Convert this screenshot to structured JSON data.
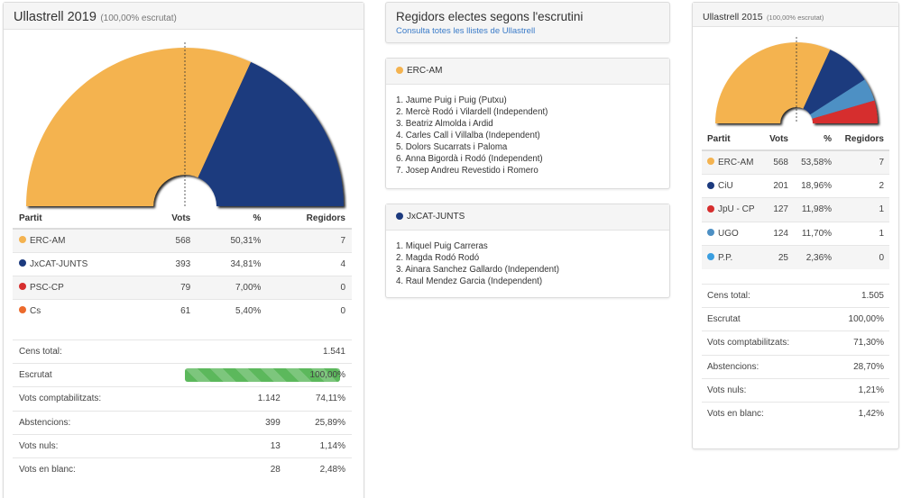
{
  "y2019": {
    "title": "Ullastrell 2019",
    "subtitle": "(100,00% escrutat)",
    "headers": [
      "Partit",
      "Vots",
      "%",
      "Regidors"
    ],
    "parties": [
      {
        "name": "ERC-AM",
        "votes": "568",
        "pct": "50,31%",
        "seats": "7",
        "color": "#f4b350"
      },
      {
        "name": "JxCAT-JUNTS",
        "votes": "393",
        "pct": "34,81%",
        "seats": "4",
        "color": "#1c3a7e"
      },
      {
        "name": "PSC-CP",
        "votes": "79",
        "pct": "7,00%",
        "seats": "0",
        "color": "#d62e2e"
      },
      {
        "name": "Cs",
        "votes": "61",
        "pct": "5,40%",
        "seats": "0",
        "color": "#ec6a2c"
      }
    ],
    "stats": [
      {
        "label": "Cens total:",
        "value": "",
        "pct": "1.541"
      },
      {
        "label": "Escrutat",
        "value": "",
        "pct": "100,00%",
        "progress": 100
      },
      {
        "label": "Vots comptabilitzats:",
        "value": "1.142",
        "pct": "74,11%"
      },
      {
        "label": "Abstencions:",
        "value": "399",
        "pct": "25,89%"
      },
      {
        "label": "Vots nuls:",
        "value": "13",
        "pct": "1,14%"
      },
      {
        "label": "Vots en blanc:",
        "value": "28",
        "pct": "2,48%"
      }
    ],
    "hemicycle": [
      {
        "party": "ERC-AM",
        "seats": 7,
        "color": "#f4b350"
      },
      {
        "party": "JxCAT-JUNTS",
        "seats": 4,
        "color": "#1c3a7e"
      }
    ]
  },
  "middle": {
    "title": "Regidors electes segons l'escrutini",
    "link": "Consulta totes les llistes de Ullastrell",
    "lists": [
      {
        "party": "ERC-AM",
        "color": "#f4b350",
        "members": [
          "1. Jaume Puig i Puig (Putxu)",
          "2. Mercè Rodó i Vilardell (Independent)",
          "3. Beatriz Almolda i Ardid",
          "4. Carles Call i Villalba (Independent)",
          "5. Dolors Sucarrats i Paloma",
          "6. Anna Bigordà i Rodó (Independent)",
          "7. Josep Andreu Revestido i Romero"
        ]
      },
      {
        "party": "JxCAT-JUNTS",
        "color": "#1c3a7e",
        "members": [
          "1. Miquel Puig Carreras",
          "2. Magda Rodó Rodó",
          "3. Ainara Sanchez Gallardo (Independent)",
          "4. Raul Mendez Garcia (Independent)"
        ]
      }
    ]
  },
  "y2015": {
    "title": "Ullastrell 2015",
    "subtitle": "(100,00% escrutat)",
    "headers": [
      "Partit",
      "Vots",
      "%",
      "Regidors"
    ],
    "parties": [
      {
        "name": "ERC-AM",
        "votes": "568",
        "pct": "53,58%",
        "seats": "7",
        "color": "#f4b350"
      },
      {
        "name": "CiU",
        "votes": "201",
        "pct": "18,96%",
        "seats": "2",
        "color": "#1c3a7e"
      },
      {
        "name": "JpU - CP",
        "votes": "127",
        "pct": "11,98%",
        "seats": "1",
        "color": "#d62e2e"
      },
      {
        "name": "UGO",
        "votes": "124",
        "pct": "11,70%",
        "seats": "1",
        "color": "#4d90c4"
      },
      {
        "name": "P.P.",
        "votes": "25",
        "pct": "2,36%",
        "seats": "0",
        "color": "#3a9ee0"
      }
    ],
    "stats": [
      {
        "label": "Cens total:",
        "pct": "1.505"
      },
      {
        "label": "Escrutat",
        "pct": "100,00%"
      },
      {
        "label": "Vots comptabilitzats:",
        "pct": "71,30%"
      },
      {
        "label": "Abstencions:",
        "pct": "28,70%"
      },
      {
        "label": "Vots nuls:",
        "pct": "1,21%"
      },
      {
        "label": "Vots en blanc:",
        "pct": "1,42%"
      }
    ],
    "hemicycle": [
      {
        "party": "ERC-AM",
        "seats": 7,
        "color": "#f4b350"
      },
      {
        "party": "CiU",
        "seats": 2,
        "color": "#1c3a7e"
      },
      {
        "party": "UGO",
        "seats": 1,
        "color": "#4d90c4"
      },
      {
        "party": "JpU - CP",
        "seats": 1,
        "color": "#d62e2e"
      }
    ]
  }
}
